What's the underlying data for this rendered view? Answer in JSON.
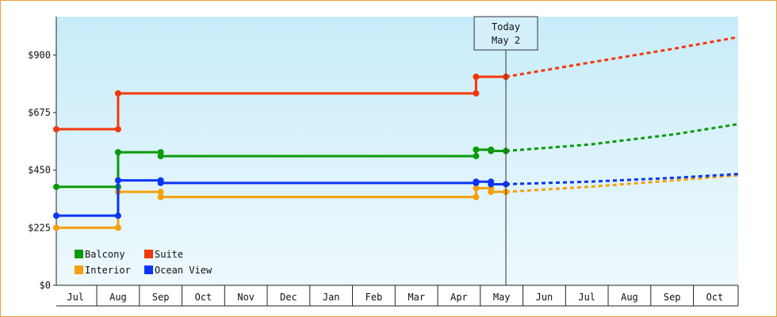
{
  "chart_data": {
    "type": "line",
    "title": "",
    "xlabel": "",
    "ylabel": "",
    "ylim": [
      0,
      1050
    ],
    "yticks": [
      {
        "value": 0,
        "label": "$0"
      },
      {
        "value": 225,
        "label": "$225"
      },
      {
        "value": 450,
        "label": "$450"
      },
      {
        "value": 675,
        "label": "$675"
      },
      {
        "value": 900,
        "label": "$900"
      }
    ],
    "xlim": [
      0,
      16
    ],
    "month_ticks": [
      {
        "pos": 0.45,
        "label": "Jul"
      },
      {
        "pos": 1.45,
        "label": "Aug"
      },
      {
        "pos": 2.45,
        "label": "Sep"
      },
      {
        "pos": 3.45,
        "label": "Oct"
      },
      {
        "pos": 4.45,
        "label": "Nov"
      },
      {
        "pos": 5.45,
        "label": "Dec"
      },
      {
        "pos": 6.45,
        "label": "Jan"
      },
      {
        "pos": 7.45,
        "label": "Feb"
      },
      {
        "pos": 8.45,
        "label": "Mar"
      },
      {
        "pos": 9.45,
        "label": "Apr"
      },
      {
        "pos": 10.45,
        "label": "May"
      },
      {
        "pos": 11.45,
        "label": "Jun"
      },
      {
        "pos": 12.45,
        "label": "Jul"
      },
      {
        "pos": 13.45,
        "label": "Aug"
      },
      {
        "pos": 14.45,
        "label": "Sep"
      },
      {
        "pos": 15.45,
        "label": "Oct"
      }
    ],
    "today": {
      "pos": 10.55,
      "label_line1": "Today",
      "label_line2": "May 2"
    },
    "legend_position": "bottom-left",
    "series": [
      {
        "name": "Balcony",
        "color": "#0a9a0a",
        "points": [
          [
            0,
            385
          ],
          [
            1.45,
            385
          ],
          [
            1.45,
            520
          ],
          [
            2.45,
            520
          ],
          [
            2.45,
            505
          ],
          [
            9.85,
            505
          ],
          [
            9.85,
            530
          ],
          [
            10.2,
            530
          ],
          [
            10.2,
            525
          ],
          [
            10.55,
            525
          ]
        ],
        "markers": [
          [
            0,
            385
          ],
          [
            1.45,
            385
          ],
          [
            1.45,
            520
          ],
          [
            2.45,
            520
          ],
          [
            2.45,
            505
          ],
          [
            9.85,
            505
          ],
          [
            9.85,
            530
          ],
          [
            10.2,
            530
          ],
          [
            10.2,
            525
          ],
          [
            10.55,
            525
          ]
        ],
        "forecast": [
          [
            10.55,
            525
          ],
          [
            12.5,
            550
          ],
          [
            14.5,
            590
          ],
          [
            16,
            630
          ]
        ]
      },
      {
        "name": "Suite",
        "color": "#f2380c",
        "points": [
          [
            0,
            610
          ],
          [
            1.45,
            610
          ],
          [
            1.45,
            750
          ],
          [
            9.85,
            750
          ],
          [
            9.85,
            815
          ],
          [
            10.55,
            815
          ]
        ],
        "markers": [
          [
            0,
            610
          ],
          [
            1.45,
            610
          ],
          [
            1.45,
            750
          ],
          [
            9.85,
            750
          ],
          [
            9.85,
            815
          ],
          [
            10.55,
            815
          ]
        ],
        "forecast": [
          [
            10.55,
            815
          ],
          [
            12.5,
            870
          ],
          [
            14.5,
            925
          ],
          [
            16,
            970
          ]
        ]
      },
      {
        "name": "Interior",
        "color": "#f5a00c",
        "points": [
          [
            0,
            225
          ],
          [
            1.45,
            225
          ],
          [
            1.45,
            365
          ],
          [
            2.45,
            365
          ],
          [
            2.45,
            345
          ],
          [
            9.85,
            345
          ],
          [
            9.85,
            380
          ],
          [
            10.2,
            380
          ],
          [
            10.2,
            365
          ],
          [
            10.55,
            365
          ]
        ],
        "markers": [
          [
            0,
            225
          ],
          [
            1.45,
            225
          ],
          [
            1.45,
            365
          ],
          [
            2.45,
            365
          ],
          [
            2.45,
            345
          ],
          [
            9.85,
            345
          ],
          [
            9.85,
            380
          ],
          [
            10.2,
            380
          ],
          [
            10.2,
            365
          ],
          [
            10.55,
            365
          ]
        ],
        "forecast": [
          [
            10.55,
            365
          ],
          [
            12.5,
            385
          ],
          [
            14.5,
            410
          ],
          [
            16,
            430
          ]
        ]
      },
      {
        "name": "Ocean View",
        "color": "#0a35f5",
        "points": [
          [
            0,
            272
          ],
          [
            1.45,
            272
          ],
          [
            1.45,
            410
          ],
          [
            2.45,
            410
          ],
          [
            2.45,
            400
          ],
          [
            9.85,
            400
          ],
          [
            9.85,
            405
          ],
          [
            10.2,
            405
          ],
          [
            10.2,
            395
          ],
          [
            10.55,
            395
          ]
        ],
        "markers": [
          [
            0,
            272
          ],
          [
            1.45,
            272
          ],
          [
            1.45,
            410
          ],
          [
            2.45,
            410
          ],
          [
            2.45,
            400
          ],
          [
            9.85,
            400
          ],
          [
            9.85,
            405
          ],
          [
            10.2,
            405
          ],
          [
            10.2,
            395
          ],
          [
            10.55,
            395
          ]
        ],
        "forecast": [
          [
            10.55,
            395
          ],
          [
            12.5,
            405
          ],
          [
            14.5,
            420
          ],
          [
            16,
            435
          ]
        ]
      }
    ],
    "legend": [
      {
        "name": "Balcony",
        "color": "#0a9a0a"
      },
      {
        "name": "Suite",
        "color": "#f2380c"
      },
      {
        "name": "Interior",
        "color": "#f5a00c"
      },
      {
        "name": "Ocean View",
        "color": "#0a35f5"
      }
    ]
  }
}
